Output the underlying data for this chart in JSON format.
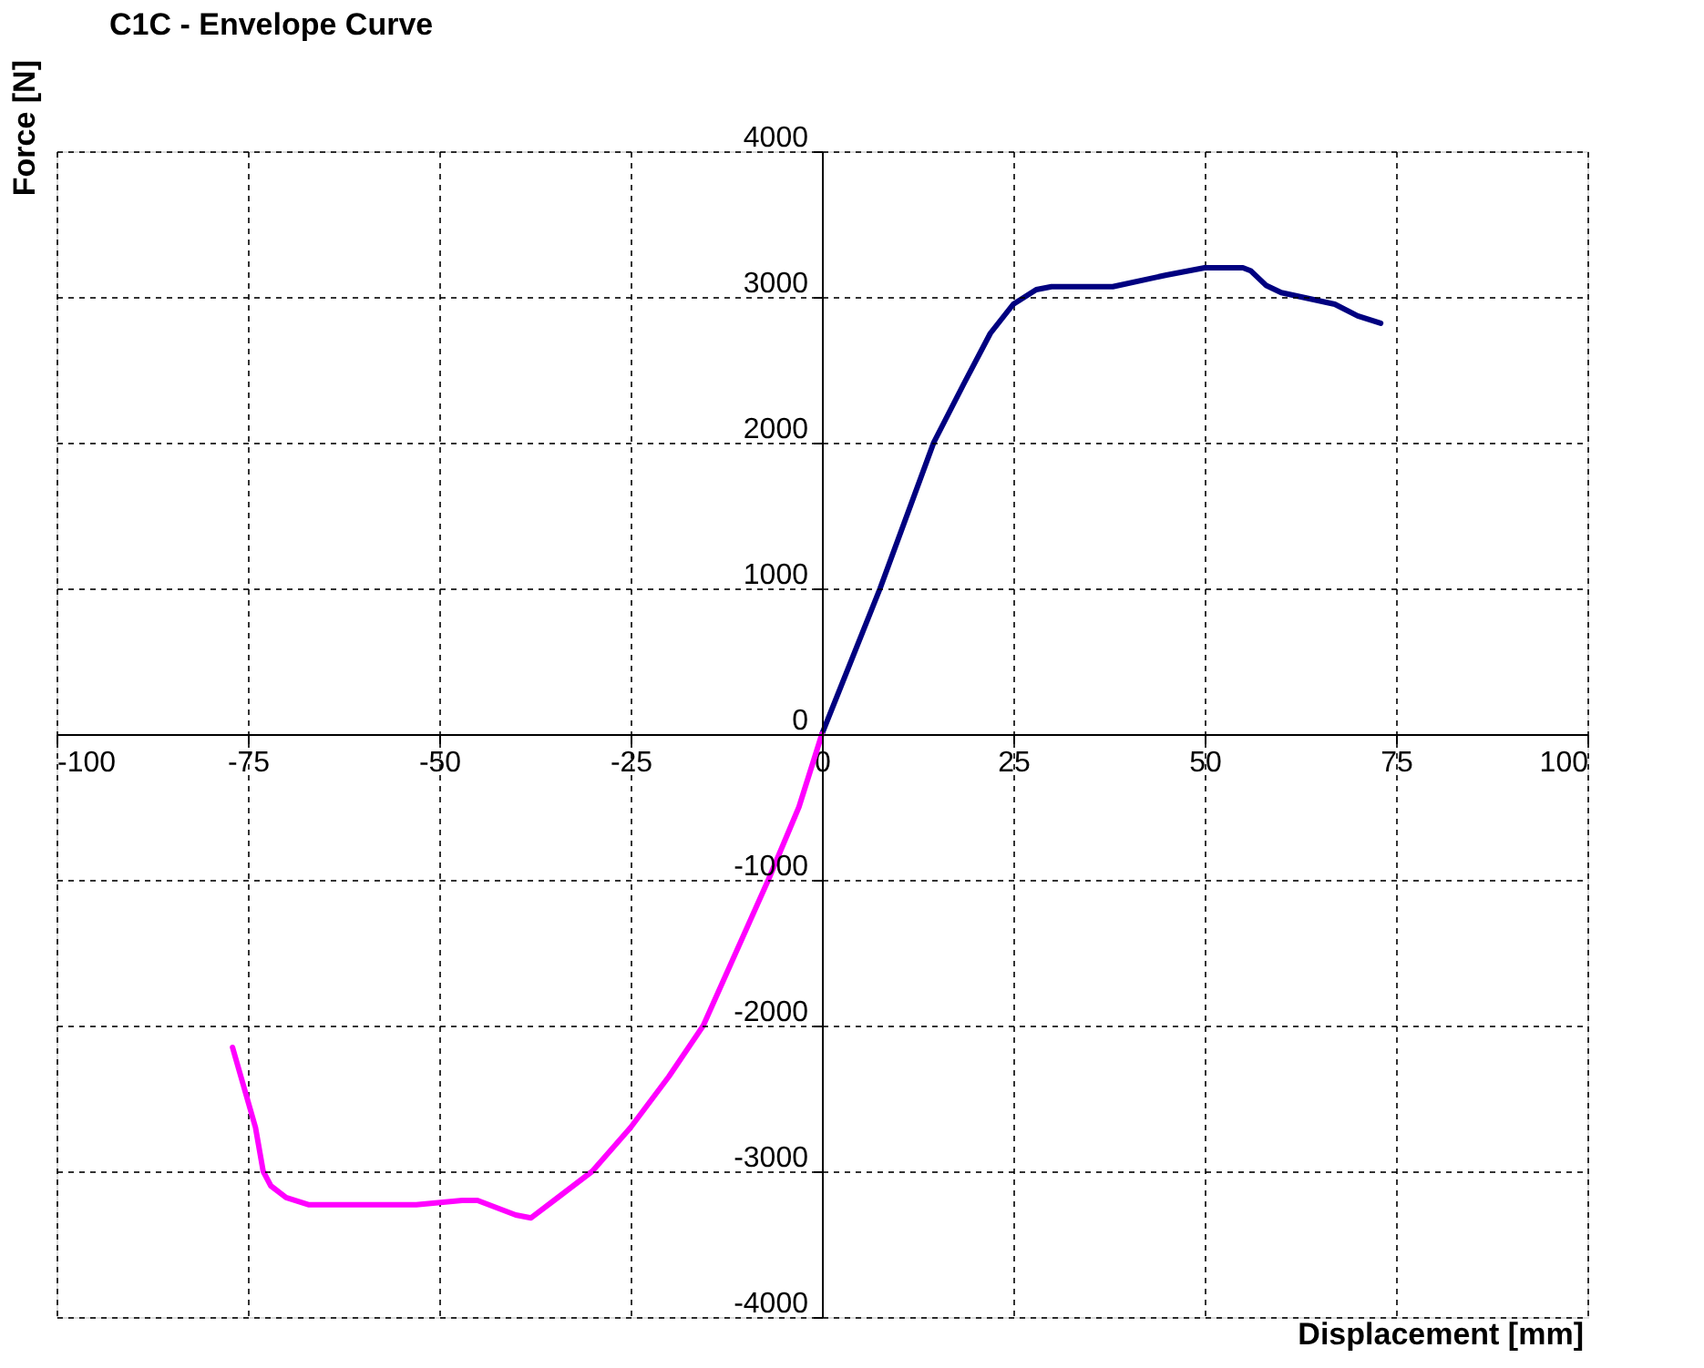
{
  "chart_data": {
    "type": "line",
    "title": "C1C   -   Envelope Curve",
    "xlabel": "Displacement [mm]",
    "ylabel": "Force [N]",
    "xlim": [
      -100,
      100
    ],
    "ylim": [
      -4000,
      4000
    ],
    "xticks": [
      -100,
      -75,
      -50,
      -25,
      0,
      25,
      50,
      75,
      100
    ],
    "yticks": [
      -4000,
      -3000,
      -2000,
      -1000,
      0,
      1000,
      2000,
      3000,
      4000
    ],
    "grid": true,
    "series": [
      {
        "color": "#000080",
        "x": [
          0,
          7.6,
          14.6,
          18.5,
          22,
          25,
          28,
          30,
          38,
          45,
          50,
          55,
          56,
          58,
          60,
          67,
          70,
          73
        ],
        "values": [
          0,
          1000,
          2000,
          2400,
          2750,
          2950,
          3050,
          3070,
          3070,
          3150,
          3200,
          3200,
          3180,
          3080,
          3030,
          2950,
          2870,
          2820
        ]
      },
      {
        "color": "#ff00ff",
        "x": [
          0,
          -3,
          -7,
          -15.5,
          -20,
          -25,
          -30,
          -35,
          -38,
          -40,
          -45,
          -47,
          -53,
          -67,
          -70,
          -72,
          -73,
          -74,
          -77
        ],
        "values": [
          0,
          -500,
          -1000,
          -2000,
          -2350,
          -2700,
          -3000,
          -3200,
          -3320,
          -3300,
          -3200,
          -3200,
          -3230,
          -3230,
          -3180,
          -3100,
          -3000,
          -2700,
          -2150
        ]
      }
    ]
  }
}
